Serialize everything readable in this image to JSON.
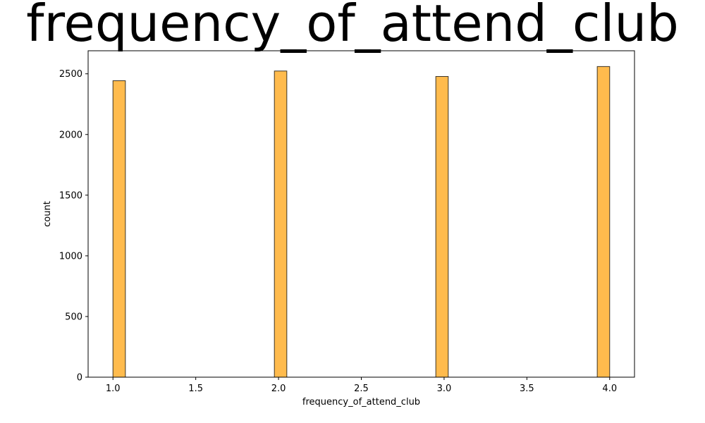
{
  "chart_data": {
    "type": "bar",
    "title": "frequency_of_attend_club",
    "xlabel": "frequency_of_attend_club",
    "ylabel": "count",
    "bin_width": 0.075,
    "bins": [
      {
        "x_start": 1.0,
        "value": 2443
      },
      {
        "x_start": 1.975,
        "value": 2523
      },
      {
        "x_start": 2.95,
        "value": 2478
      },
      {
        "x_start": 3.925,
        "value": 2560
      }
    ],
    "xlim": [
      0.85,
      4.15
    ],
    "ylim": [
      0,
      2690
    ],
    "x_ticks": [
      {
        "value": 1.0,
        "label": "1.0"
      },
      {
        "value": 1.5,
        "label": "1.5"
      },
      {
        "value": 2.0,
        "label": "2.0"
      },
      {
        "value": 2.5,
        "label": "2.5"
      },
      {
        "value": 3.0,
        "label": "3.0"
      },
      {
        "value": 3.5,
        "label": "3.5"
      },
      {
        "value": 4.0,
        "label": "4.0"
      }
    ],
    "y_ticks": [
      {
        "value": 0,
        "label": "0"
      },
      {
        "value": 500,
        "label": "500"
      },
      {
        "value": 1000,
        "label": "1000"
      },
      {
        "value": 1500,
        "label": "1500"
      },
      {
        "value": 2000,
        "label": "2000"
      },
      {
        "value": 2500,
        "label": "2500"
      }
    ],
    "grid": false,
    "legend": "none",
    "colors": {
      "bar_fill": "#ffbb4d",
      "bar_edge": "#3d3425",
      "axis": "#000000"
    }
  }
}
